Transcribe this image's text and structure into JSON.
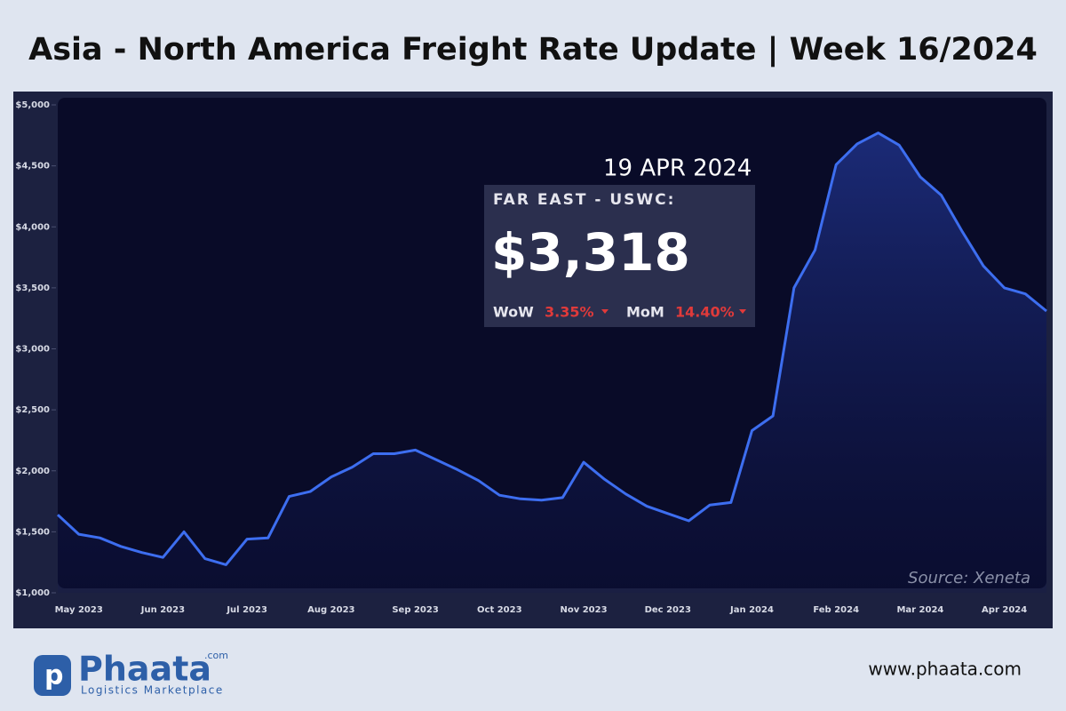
{
  "chart_data": {
    "type": "line",
    "title": "Asia - North America Freight Rate Update | Week 16/2024",
    "categories": [
      null,
      "May 2023",
      null,
      null,
      null,
      "Jun 2023",
      null,
      null,
      null,
      "Jul 2023",
      null,
      null,
      null,
      "Aug 2023",
      null,
      null,
      null,
      "Sep 2023",
      null,
      null,
      null,
      "Oct 2023",
      null,
      null,
      null,
      "Nov 2023",
      null,
      null,
      null,
      "Dec 2023",
      null,
      null,
      null,
      "Jan 2024",
      null,
      null,
      null,
      "Feb 2024",
      null,
      null,
      null,
      "Mar 2024",
      null,
      null,
      null,
      "Apr 2024",
      null,
      null
    ],
    "series": [
      {
        "name": "Far East - USWC",
        "color": "#3d6ef0",
        "values": [
          1640,
          1480,
          1450,
          1380,
          1330,
          1290,
          1500,
          1280,
          1230,
          1440,
          1450,
          1790,
          1830,
          1950,
          2030,
          2140,
          2140,
          2170,
          2090,
          2010,
          1920,
          1800,
          1770,
          1760,
          1780,
          2070,
          1930,
          1810,
          1710,
          1650,
          1590,
          1720,
          1740,
          2330,
          2450,
          3500,
          3810,
          4510,
          4680,
          4770,
          4670,
          4410,
          4260,
          3960,
          3680,
          3500,
          3450,
          3310
        ]
      }
    ],
    "ylim": [
      1000,
      5000
    ],
    "yticks": [
      {
        "value": 1000,
        "label": "$1,000"
      },
      {
        "value": 1500,
        "label": "$1,500"
      },
      {
        "value": 2000,
        "label": "$2,000"
      },
      {
        "value": 2500,
        "label": "$2,500"
      },
      {
        "value": 3000,
        "label": "$3,000"
      },
      {
        "value": 3500,
        "label": "$3,500"
      },
      {
        "value": 4000,
        "label": "$4,000"
      },
      {
        "value": 4500,
        "label": "$4,500"
      },
      {
        "value": 5000,
        "label": "$5,000"
      }
    ],
    "annotations": {
      "date": "19 APR 2024",
      "route": "FAR EAST - USWC:",
      "price": "$3,318",
      "wow_label": "WoW",
      "wow_value": "3.35%",
      "mom_label": "MoM",
      "mom_value": "14.40%",
      "source": "Source: Xeneta"
    }
  },
  "footer": {
    "brand": "Phaata",
    "brand_suffix": ".com",
    "tagline": "Logistics Marketplace",
    "website": "www.phaata.com"
  }
}
